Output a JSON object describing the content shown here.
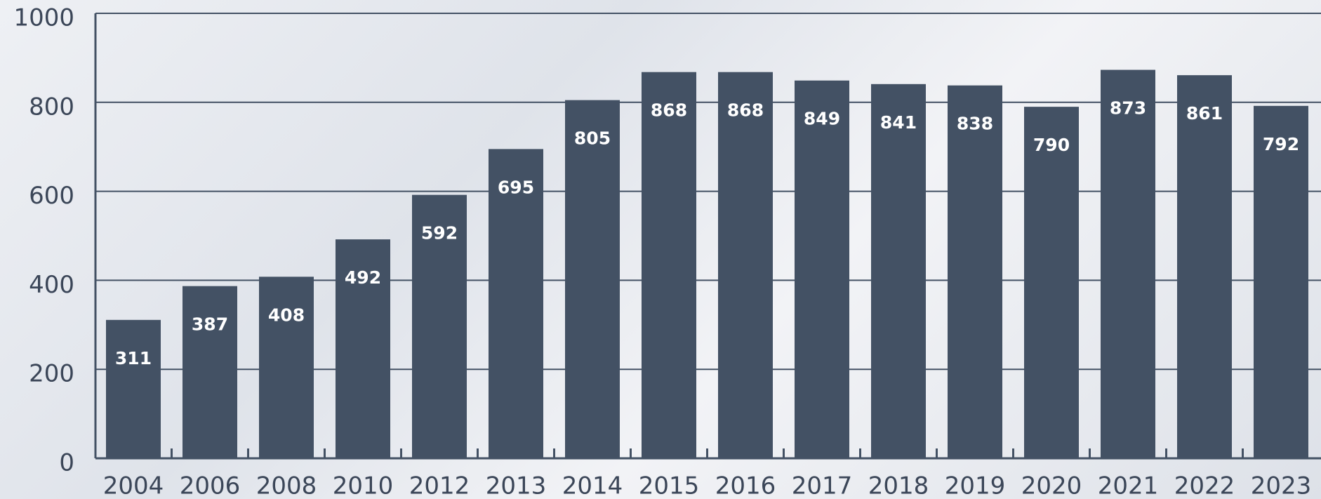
{
  "chart_data": {
    "type": "bar",
    "categories": [
      "2004",
      "2006",
      "2008",
      "2010",
      "2012",
      "2013",
      "2014",
      "2015",
      "2016",
      "2017",
      "2018",
      "2019",
      "2020",
      "2021",
      "2022",
      "2023"
    ],
    "values": [
      311,
      387,
      408,
      492,
      592,
      695,
      805,
      868,
      868,
      849,
      841,
      838,
      790,
      873,
      861,
      792
    ],
    "color": "#435164",
    "ylim": [
      0,
      1000
    ],
    "yticks": [
      0,
      200,
      400,
      600,
      800,
      1000
    ],
    "grid": true
  }
}
